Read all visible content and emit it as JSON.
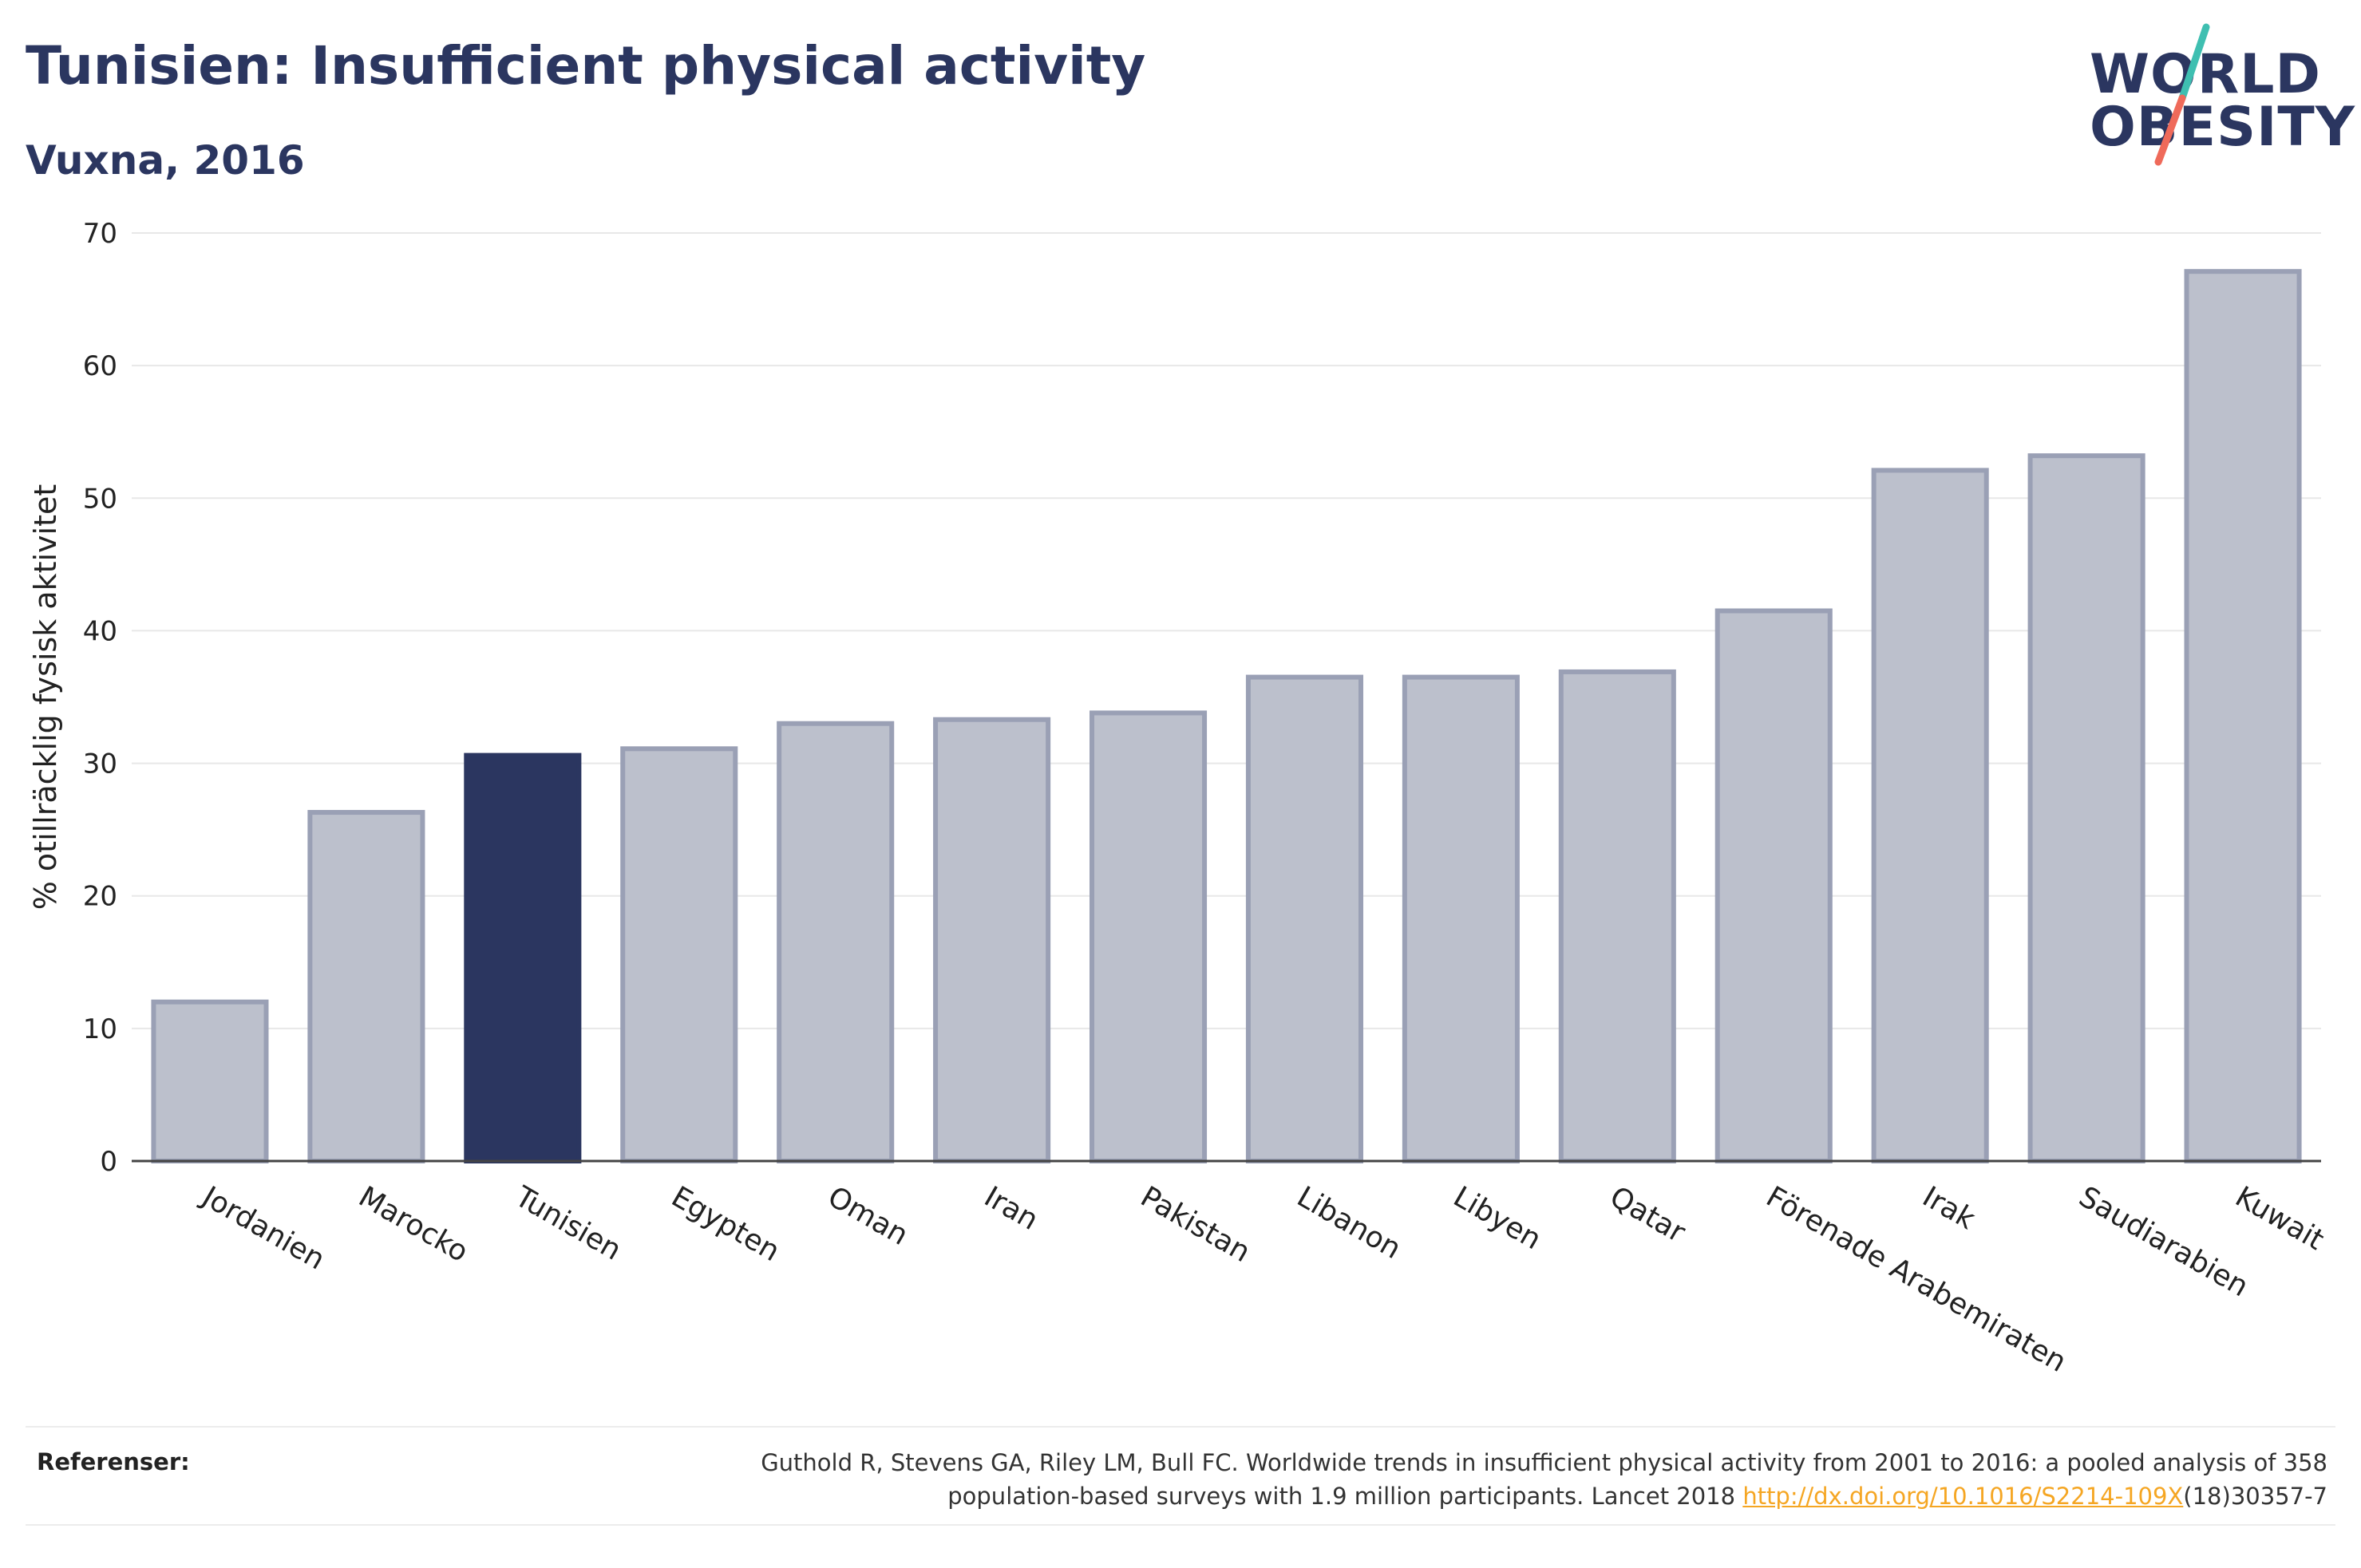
{
  "header": {
    "title": "Tunisien: Insufficient physical activity",
    "subtitle": "Vuxna, 2016"
  },
  "logo": {
    "line1": "WORLD",
    "line2": "OBESITY",
    "slash_colors": [
      "#3fbfb1",
      "#ef6a5a"
    ]
  },
  "chart_data": {
    "type": "bar",
    "title": "Tunisien: Insufficient physical activity",
    "subtitle": "Vuxna, 2016",
    "xlabel": "",
    "ylabel": "% otillräcklig fysisk aktivitet",
    "ylim": [
      0,
      70
    ],
    "yticks": [
      0,
      10,
      20,
      30,
      40,
      50,
      60,
      70
    ],
    "grid": true,
    "highlight": "Tunisien",
    "colors": {
      "highlight": "#2b3660",
      "default": "#bcc0cc",
      "default_stroke": "#9aa0b5"
    },
    "categories": [
      "Jordanien",
      "Marocko",
      "Tunisien",
      "Egypten",
      "Oman",
      "Iran",
      "Pakistan",
      "Libanon",
      "Libyen",
      "Qatar",
      "Förenade Arabemiraten",
      "Irak",
      "Saudiarabien",
      "Kuwait"
    ],
    "values": [
      12.0,
      26.3,
      30.6,
      31.1,
      33.0,
      33.3,
      33.8,
      36.5,
      36.5,
      36.9,
      41.5,
      52.1,
      53.2,
      67.1
    ]
  },
  "footer": {
    "label": "Referenser:",
    "text_line1": "Guthold R, Stevens GA, Riley LM, Bull FC. Worldwide trends in insufficient physical activity from 2001 to 2016: a pooled analysis of 358",
    "text_line2_pre": "population-based surveys with 1.9 million participants. Lancet 2018 ",
    "link": "http://dx.doi.org/10.1016/S2214-109X",
    "text_line2_post": "(18)30357-7"
  }
}
